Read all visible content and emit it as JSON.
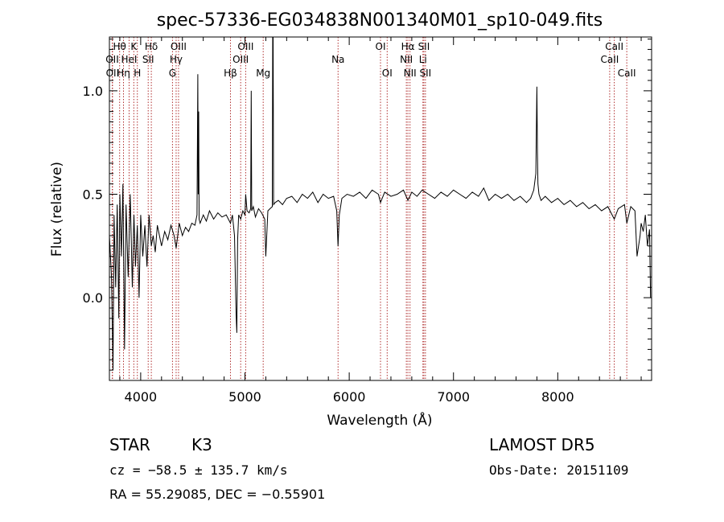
{
  "chart_data": {
    "type": "line",
    "title": "spec-57336-EG034838N001340M01_sp10-049.fits",
    "xlabel": "Wavelength (Å)",
    "ylabel": "Flux (relative)",
    "xlim": [
      3700,
      8900
    ],
    "ylim": [
      -0.4,
      1.26
    ],
    "x_ticks": [
      4000,
      5000,
      6000,
      7000,
      8000
    ],
    "x_tick_labels": [
      "4000",
      "5000",
      "6000",
      "7000",
      "8000"
    ],
    "y_ticks": [
      0.0,
      0.5,
      1.0
    ],
    "y_tick_labels": [
      "0.0",
      "0.5",
      "1.0"
    ],
    "grid": false,
    "line_color": "#000000",
    "marker_line_color": "#b03030",
    "spectrum": {
      "x": [
        3700,
        3720,
        3735,
        3745,
        3760,
        3775,
        3790,
        3800,
        3815,
        3830,
        3845,
        3860,
        3880,
        3900,
        3920,
        3935,
        3950,
        3968,
        3985,
        4000,
        4020,
        4040,
        4060,
        4080,
        4102,
        4120,
        4140,
        4160,
        4180,
        4200,
        4230,
        4260,
        4290,
        4320,
        4340,
        4370,
        4400,
        4430,
        4460,
        4490,
        4520,
        4540,
        4548,
        4552,
        4556,
        4560,
        4570,
        4600,
        4630,
        4660,
        4700,
        4740,
        4780,
        4820,
        4861,
        4880,
        4900,
        4915,
        4922,
        4930,
        4940,
        4959,
        4980,
        5000,
        5007,
        5020,
        5040,
        5055,
        5060,
        5065,
        5080,
        5100,
        5130,
        5160,
        5190,
        5200,
        5220,
        5240,
        5262,
        5266,
        5270,
        5275,
        5290,
        5320,
        5360,
        5400,
        5450,
        5500,
        5550,
        5600,
        5650,
        5700,
        5750,
        5800,
        5850,
        5880,
        5893,
        5905,
        5930,
        5980,
        6040,
        6100,
        6160,
        6220,
        6280,
        6300,
        6340,
        6400,
        6460,
        6520,
        6563,
        6600,
        6650,
        6700,
        6760,
        6820,
        6880,
        6940,
        7000,
        7060,
        7120,
        7180,
        7240,
        7290,
        7340,
        7400,
        7460,
        7520,
        7580,
        7640,
        7700,
        7740,
        7770,
        7790,
        7800,
        7805,
        7810,
        7820,
        7840,
        7880,
        7940,
        8000,
        8060,
        8120,
        8180,
        8240,
        8300,
        8360,
        8420,
        8480,
        8542,
        8580,
        8640,
        8662,
        8700,
        8740,
        8760,
        8790,
        8800,
        8820,
        8840,
        8860,
        8880,
        8890
      ],
      "y": [
        0.3,
        0.1,
        -0.35,
        0.4,
        0.05,
        0.45,
        -0.1,
        0.5,
        0.2,
        0.55,
        -0.25,
        0.45,
        0.1,
        0.5,
        0.05,
        0.4,
        0.15,
        0.35,
        0.0,
        0.4,
        0.2,
        0.35,
        0.15,
        0.4,
        0.25,
        0.3,
        0.22,
        0.35,
        0.3,
        0.25,
        0.32,
        0.28,
        0.35,
        0.3,
        0.24,
        0.36,
        0.3,
        0.34,
        0.32,
        0.36,
        0.35,
        0.4,
        1.08,
        0.5,
        0.9,
        0.38,
        0.36,
        0.4,
        0.37,
        0.42,
        0.38,
        0.41,
        0.39,
        0.4,
        0.36,
        0.4,
        0.3,
        -0.08,
        -0.17,
        0.28,
        0.4,
        0.38,
        0.42,
        0.4,
        0.5,
        0.42,
        0.41,
        0.43,
        1.0,
        0.42,
        0.44,
        0.39,
        0.43,
        0.41,
        0.38,
        0.2,
        0.42,
        0.43,
        0.44,
        1.28,
        1.28,
        0.45,
        0.46,
        0.47,
        0.45,
        0.48,
        0.49,
        0.46,
        0.5,
        0.48,
        0.51,
        0.46,
        0.5,
        0.48,
        0.49,
        0.42,
        0.25,
        0.4,
        0.48,
        0.5,
        0.49,
        0.51,
        0.48,
        0.52,
        0.5,
        0.46,
        0.51,
        0.49,
        0.5,
        0.52,
        0.47,
        0.51,
        0.49,
        0.52,
        0.5,
        0.48,
        0.51,
        0.49,
        0.52,
        0.5,
        0.48,
        0.51,
        0.49,
        0.53,
        0.47,
        0.5,
        0.48,
        0.5,
        0.47,
        0.49,
        0.46,
        0.48,
        0.52,
        0.6,
        1.02,
        0.7,
        0.55,
        0.5,
        0.47,
        0.49,
        0.46,
        0.48,
        0.45,
        0.47,
        0.44,
        0.46,
        0.43,
        0.45,
        0.42,
        0.44,
        0.38,
        0.43,
        0.45,
        0.36,
        0.44,
        0.42,
        0.2,
        0.3,
        0.36,
        0.32,
        0.4,
        0.25,
        0.33,
        0.0
      ]
    },
    "line_markers": [
      {
        "label": "Hθ",
        "x": 3798,
        "row": 1
      },
      {
        "label": "OII",
        "x": 3727,
        "row": 2
      },
      {
        "label": "OII",
        "x": 3730,
        "row": 3
      },
      {
        "label": "K",
        "x": 3934,
        "row": 1
      },
      {
        "label": "HeI",
        "x": 3889,
        "row": 2
      },
      {
        "label": "Hη",
        "x": 3835,
        "row": 3
      },
      {
        "label": "H",
        "x": 3968,
        "row": 3
      },
      {
        "label": "Hδ",
        "x": 4102,
        "row": 1
      },
      {
        "label": "SII",
        "x": 4072,
        "row": 2
      },
      {
        "label": "OIII",
        "x": 4363,
        "row": 1
      },
      {
        "label": "Hγ",
        "x": 4340,
        "row": 2
      },
      {
        "label": "G",
        "x": 4305,
        "row": 3
      },
      {
        "label": "Hβ",
        "x": 4861,
        "row": 3
      },
      {
        "label": "OIII",
        "x": 5007,
        "row": 1
      },
      {
        "label": "OIII",
        "x": 4959,
        "row": 2
      },
      {
        "label": "Mg",
        "x": 5175,
        "row": 3
      },
      {
        "label": "Na",
        "x": 5893,
        "row": 2
      },
      {
        "label": "OI",
        "x": 6300,
        "row": 1
      },
      {
        "label": "OI",
        "x": 6364,
        "row": 3
      },
      {
        "label": "Hα",
        "x": 6563,
        "row": 1
      },
      {
        "label": "NII",
        "x": 6548,
        "row": 2
      },
      {
        "label": "NII",
        "x": 6583,
        "row": 3
      },
      {
        "label": "SII",
        "x": 6716,
        "row": 1
      },
      {
        "label": "Li",
        "x": 6707,
        "row": 2
      },
      {
        "label": "SII",
        "x": 6731,
        "row": 3
      },
      {
        "label": "CaII",
        "x": 8542,
        "row": 1
      },
      {
        "label": "CaII",
        "x": 8498,
        "row": 2
      },
      {
        "label": "CaII",
        "x": 8662,
        "row": 3
      }
    ]
  },
  "info": {
    "object_class": "STAR",
    "subclass": "K3",
    "survey": "LAMOST  DR5",
    "redshift_line": "cz = −58.5 ± 135.7 km/s",
    "obs_date": "Obs-Date: 20151109",
    "coords": "RA =  55.29085, DEC =  −0.55901"
  }
}
